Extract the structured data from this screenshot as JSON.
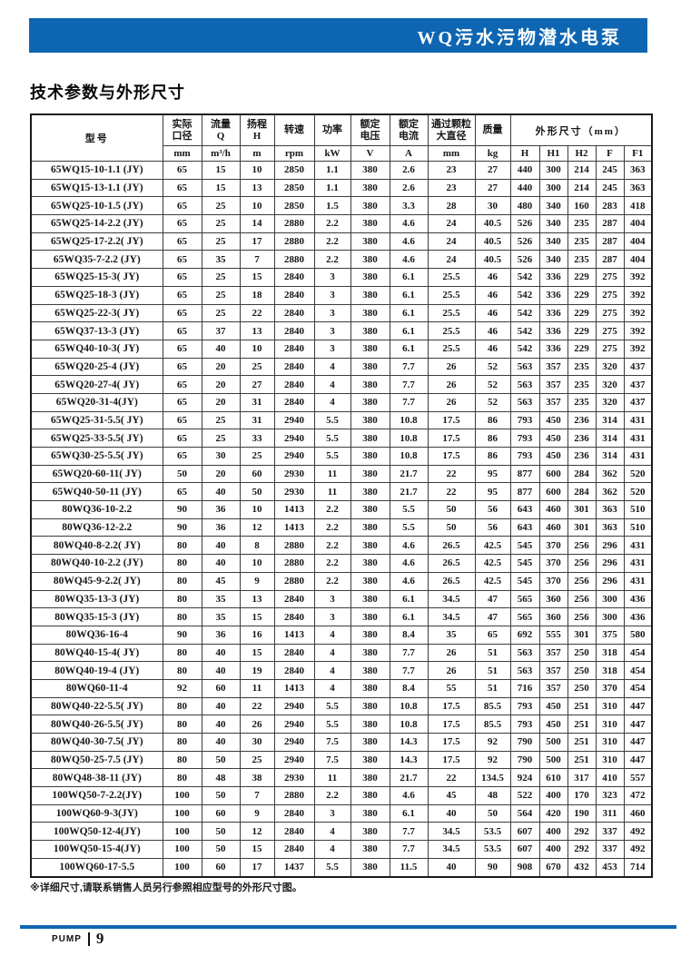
{
  "page": {
    "banner_title": "WQ污水污物潜水电泵",
    "title": "技术参数与外形尺寸",
    "footnote": "※详细尺寸,请联系销售人员另行参照相应型号的外形尺寸图。",
    "footer": {
      "brand": "PUMP",
      "page_number": "9"
    },
    "accent_color": "#0e66b2"
  },
  "table": {
    "header": {
      "model": "型号",
      "columns": [
        {
          "l1": "实际",
          "l2": "口径",
          "unit": "mm"
        },
        {
          "l1": "流量",
          "l2": "Q",
          "unit": "m³/h"
        },
        {
          "l1": "扬程",
          "l2": "H",
          "unit": "m"
        },
        {
          "l1": "转速",
          "unit": "rpm"
        },
        {
          "l1": "功率",
          "unit": "kW"
        },
        {
          "l1": "额定",
          "l2": "电压",
          "unit": "V"
        },
        {
          "l1": "额定",
          "l2": "电流",
          "unit": "A"
        },
        {
          "l1": "通过颗粒",
          "l2": "大直径",
          "unit": "mm"
        },
        {
          "l1": "质量",
          "unit": "kg"
        }
      ],
      "dims_label": "外形尺寸（mm）",
      "dims": [
        "H",
        "H1",
        "H2",
        "F",
        "F1"
      ]
    },
    "rows": [
      [
        "65WQ15-10-1.1 (JY)",
        "65",
        "15",
        "10",
        "2850",
        "1.1",
        "380",
        "2.6",
        "23",
        "27",
        "440",
        "300",
        "214",
        "245",
        "363"
      ],
      [
        "65WQ15-13-1.1 (JY)",
        "65",
        "15",
        "13",
        "2850",
        "1.1",
        "380",
        "2.6",
        "23",
        "27",
        "440",
        "300",
        "214",
        "245",
        "363"
      ],
      [
        "65WQ25-10-1.5 (JY)",
        "65",
        "25",
        "10",
        "2850",
        "1.5",
        "380",
        "3.3",
        "28",
        "30",
        "480",
        "340",
        "160",
        "283",
        "418"
      ],
      [
        "65WQ25-14-2.2 (JY)",
        "65",
        "25",
        "14",
        "2880",
        "2.2",
        "380",
        "4.6",
        "24",
        "40.5",
        "526",
        "340",
        "235",
        "287",
        "404"
      ],
      [
        "65WQ25-17-2.2( JY)",
        "65",
        "25",
        "17",
        "2880",
        "2.2",
        "380",
        "4.6",
        "24",
        "40.5",
        "526",
        "340",
        "235",
        "287",
        "404"
      ],
      [
        "65WQ35-7-2.2 (JY)",
        "65",
        "35",
        "7",
        "2880",
        "2.2",
        "380",
        "4.6",
        "24",
        "40.5",
        "526",
        "340",
        "235",
        "287",
        "404"
      ],
      [
        "65WQ25-15-3( JY)",
        "65",
        "25",
        "15",
        "2840",
        "3",
        "380",
        "6.1",
        "25.5",
        "46",
        "542",
        "336",
        "229",
        "275",
        "392"
      ],
      [
        "65WQ25-18-3 (JY)",
        "65",
        "25",
        "18",
        "2840",
        "3",
        "380",
        "6.1",
        "25.5",
        "46",
        "542",
        "336",
        "229",
        "275",
        "392"
      ],
      [
        "65WQ25-22-3( JY)",
        "65",
        "25",
        "22",
        "2840",
        "3",
        "380",
        "6.1",
        "25.5",
        "46",
        "542",
        "336",
        "229",
        "275",
        "392"
      ],
      [
        "65WQ37-13-3 (JY)",
        "65",
        "37",
        "13",
        "2840",
        "3",
        "380",
        "6.1",
        "25.5",
        "46",
        "542",
        "336",
        "229",
        "275",
        "392"
      ],
      [
        "65WQ40-10-3( JY)",
        "65",
        "40",
        "10",
        "2840",
        "3",
        "380",
        "6.1",
        "25.5",
        "46",
        "542",
        "336",
        "229",
        "275",
        "392"
      ],
      [
        "65WQ20-25-4 (JY)",
        "65",
        "20",
        "25",
        "2840",
        "4",
        "380",
        "7.7",
        "26",
        "52",
        "563",
        "357",
        "235",
        "320",
        "437"
      ],
      [
        "65WQ20-27-4( JY)",
        "65",
        "20",
        "27",
        "2840",
        "4",
        "380",
        "7.7",
        "26",
        "52",
        "563",
        "357",
        "235",
        "320",
        "437"
      ],
      [
        "65WQ20-31-4(JY)",
        "65",
        "20",
        "31",
        "2840",
        "4",
        "380",
        "7.7",
        "26",
        "52",
        "563",
        "357",
        "235",
        "320",
        "437"
      ],
      [
        "65WQ25-31-5.5( JY)",
        "65",
        "25",
        "31",
        "2940",
        "5.5",
        "380",
        "10.8",
        "17.5",
        "86",
        "793",
        "450",
        "236",
        "314",
        "431"
      ],
      [
        "65WQ25-33-5.5( JY)",
        "65",
        "25",
        "33",
        "2940",
        "5.5",
        "380",
        "10.8",
        "17.5",
        "86",
        "793",
        "450",
        "236",
        "314",
        "431"
      ],
      [
        "65WQ30-25-5.5( JY)",
        "65",
        "30",
        "25",
        "2940",
        "5.5",
        "380",
        "10.8",
        "17.5",
        "86",
        "793",
        "450",
        "236",
        "314",
        "431"
      ],
      [
        "65WQ20-60-11( JY)",
        "50",
        "20",
        "60",
        "2930",
        "11",
        "380",
        "21.7",
        "22",
        "95",
        "877",
        "600",
        "284",
        "362",
        "520"
      ],
      [
        "65WQ40-50-11 (JY)",
        "65",
        "40",
        "50",
        "2930",
        "11",
        "380",
        "21.7",
        "22",
        "95",
        "877",
        "600",
        "284",
        "362",
        "520"
      ],
      [
        "80WQ36-10-2.2",
        "90",
        "36",
        "10",
        "1413",
        "2.2",
        "380",
        "5.5",
        "50",
        "56",
        "643",
        "460",
        "301",
        "363",
        "510"
      ],
      [
        "80WQ36-12-2.2",
        "90",
        "36",
        "12",
        "1413",
        "2.2",
        "380",
        "5.5",
        "50",
        "56",
        "643",
        "460",
        "301",
        "363",
        "510"
      ],
      [
        "80WQ40-8-2.2( JY)",
        "80",
        "40",
        "8",
        "2880",
        "2.2",
        "380",
        "4.6",
        "26.5",
        "42.5",
        "545",
        "370",
        "256",
        "296",
        "431"
      ],
      [
        "80WQ40-10-2.2 (JY)",
        "80",
        "40",
        "10",
        "2880",
        "2.2",
        "380",
        "4.6",
        "26.5",
        "42.5",
        "545",
        "370",
        "256",
        "296",
        "431"
      ],
      [
        "80WQ45-9-2.2( JY)",
        "80",
        "45",
        "9",
        "2880",
        "2.2",
        "380",
        "4.6",
        "26.5",
        "42.5",
        "545",
        "370",
        "256",
        "296",
        "431"
      ],
      [
        "80WQ35-13-3 (JY)",
        "80",
        "35",
        "13",
        "2840",
        "3",
        "380",
        "6.1",
        "34.5",
        "47",
        "565",
        "360",
        "256",
        "300",
        "436"
      ],
      [
        "80WQ35-15-3 (JY)",
        "80",
        "35",
        "15",
        "2840",
        "3",
        "380",
        "6.1",
        "34.5",
        "47",
        "565",
        "360",
        "256",
        "300",
        "436"
      ],
      [
        "80WQ36-16-4",
        "90",
        "36",
        "16",
        "1413",
        "4",
        "380",
        "8.4",
        "35",
        "65",
        "692",
        "555",
        "301",
        "375",
        "580"
      ],
      [
        "80WQ40-15-4( JY)",
        "80",
        "40",
        "15",
        "2840",
        "4",
        "380",
        "7.7",
        "26",
        "51",
        "563",
        "357",
        "250",
        "318",
        "454"
      ],
      [
        "80WQ40-19-4 (JY)",
        "80",
        "40",
        "19",
        "2840",
        "4",
        "380",
        "7.7",
        "26",
        "51",
        "563",
        "357",
        "250",
        "318",
        "454"
      ],
      [
        "80WQ60-11-4",
        "92",
        "60",
        "11",
        "1413",
        "4",
        "380",
        "8.4",
        "55",
        "51",
        "716",
        "357",
        "250",
        "370",
        "454"
      ],
      [
        "80WQ40-22-5.5( JY)",
        "80",
        "40",
        "22",
        "2940",
        "5.5",
        "380",
        "10.8",
        "17.5",
        "85.5",
        "793",
        "450",
        "251",
        "310",
        "447"
      ],
      [
        "80WQ40-26-5.5( JY)",
        "80",
        "40",
        "26",
        "2940",
        "5.5",
        "380",
        "10.8",
        "17.5",
        "85.5",
        "793",
        "450",
        "251",
        "310",
        "447"
      ],
      [
        "80WQ40-30-7.5( JY)",
        "80",
        "40",
        "30",
        "2940",
        "7.5",
        "380",
        "14.3",
        "17.5",
        "92",
        "790",
        "500",
        "251",
        "310",
        "447"
      ],
      [
        "80WQ50-25-7.5 (JY)",
        "80",
        "50",
        "25",
        "2940",
        "7.5",
        "380",
        "14.3",
        "17.5",
        "92",
        "790",
        "500",
        "251",
        "310",
        "447"
      ],
      [
        "80WQ48-38-11 (JY)",
        "80",
        "48",
        "38",
        "2930",
        "11",
        "380",
        "21.7",
        "22",
        "134.5",
        "924",
        "610",
        "317",
        "410",
        "557"
      ],
      [
        "100WQ50-7-2.2(JY)",
        "100",
        "50",
        "7",
        "2880",
        "2.2",
        "380",
        "4.6",
        "45",
        "48",
        "522",
        "400",
        "170",
        "323",
        "472"
      ],
      [
        "100WQ60-9-3(JY)",
        "100",
        "60",
        "9",
        "2840",
        "3",
        "380",
        "6.1",
        "40",
        "50",
        "564",
        "420",
        "190",
        "311",
        "460"
      ],
      [
        "100WQ50-12-4(JY)",
        "100",
        "50",
        "12",
        "2840",
        "4",
        "380",
        "7.7",
        "34.5",
        "53.5",
        "607",
        "400",
        "292",
        "337",
        "492"
      ],
      [
        "100WQ50-15-4(JY)",
        "100",
        "50",
        "15",
        "2840",
        "4",
        "380",
        "7.7",
        "34.5",
        "53.5",
        "607",
        "400",
        "292",
        "337",
        "492"
      ],
      [
        "100WQ60-17-5.5",
        "100",
        "60",
        "17",
        "1437",
        "5.5",
        "380",
        "11.5",
        "40",
        "90",
        "908",
        "670",
        "432",
        "453",
        "714"
      ]
    ]
  }
}
